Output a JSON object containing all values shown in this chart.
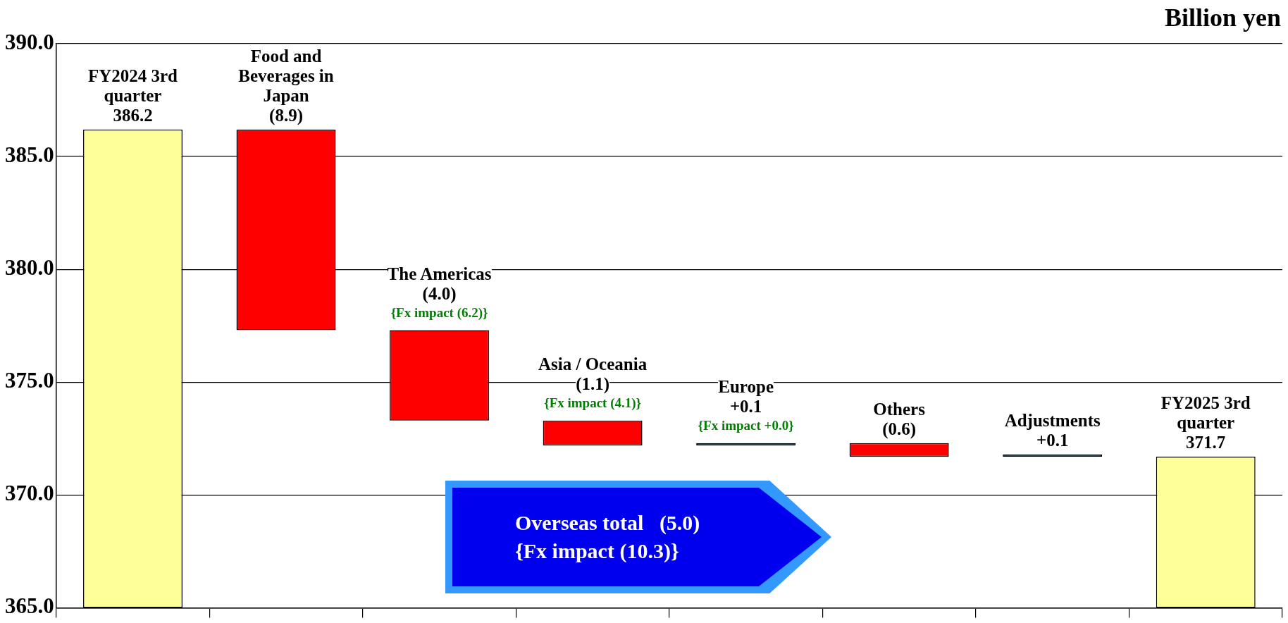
{
  "chart_data": {
    "type": "bar",
    "categories": [
      "FY2024 3rd quarter",
      "Food and Beverages in Japan",
      "The Americas",
      "Asia / Oceania",
      "Europe",
      "Others",
      "Adjustments",
      "FY2025 3rd quarter"
    ],
    "values": [
      386.2,
      -8.9,
      -4.0,
      -1.1,
      0.1,
      -0.6,
      0.1,
      371.7
    ],
    "base": [
      null,
      386.2,
      377.3,
      373.3,
      372.2,
      372.3,
      371.7,
      null
    ],
    "value_labels": [
      "386.2",
      "(8.9)",
      "(4.0)",
      "(1.1)",
      "+0.1",
      "(0.6)",
      "+0.1",
      "371.7"
    ],
    "colors": [
      "#ffff99",
      "#ff0000",
      "#ff0000",
      "#ff0000",
      "#0070c0",
      "#ff0000",
      "#0070c0",
      "#ffff99"
    ],
    "ylabel": "Billion yen",
    "ylim": [
      365,
      390
    ],
    "yticks": [
      {
        "value": 365,
        "label": "365.0"
      },
      {
        "value": 370,
        "label": "370.0"
      },
      {
        "value": 375,
        "label": "375.0"
      },
      {
        "value": 380,
        "label": "380.0"
      },
      {
        "value": 385,
        "label": "385.0"
      },
      {
        "value": 390,
        "label": "390.0"
      }
    ],
    "grid": "y",
    "legend": false,
    "tick_labels": "y",
    "annotations": [
      {
        "text": "{Fx impact (6.2)}",
        "x": "The Americas",
        "y": 377.3
      },
      {
        "text": "{Fx impact (4.1)}",
        "x": "Asia / Oceania",
        "y": 373.3
      },
      {
        "text": "{Fx impact +0.0}",
        "x": "Europe",
        "y": 372.3
      },
      "Overseas total   (5.0)",
      "{Fx impact (10.3)}"
    ]
  }
}
